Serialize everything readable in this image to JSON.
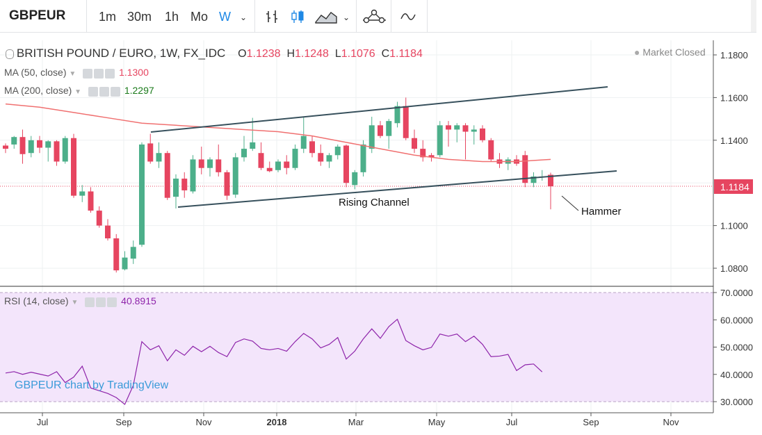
{
  "toolbar": {
    "symbol": "GBPEUR",
    "timeframes": [
      "1m",
      "30m",
      "1h",
      "Mo",
      "W"
    ],
    "active_timeframe": "W",
    "icons": [
      "bars-icon",
      "candles-icon",
      "area-icon",
      "chevron-down-icon",
      "indicators-icon",
      "compare-icon"
    ]
  },
  "header": {
    "title": "BRITISH POUND / EURO, 1W, FX_IDC",
    "o_label": "O",
    "o": "1.1238",
    "h_label": "H",
    "h": "1.1248",
    "l_label": "L",
    "l": "1.1076",
    "c_label": "C",
    "c": "1.1184",
    "status": "Market Closed"
  },
  "indicators": {
    "ma50_label": "MA (50, close)",
    "ma50_value": "1.1300",
    "ma200_label": "MA (200, close)",
    "ma200_value": "1.2297",
    "rsi_label": "RSI (14, close)",
    "rsi_value": "40.8915"
  },
  "colors": {
    "up": "#4caf8a",
    "down": "#e64560",
    "ma50": "#f07070",
    "trend": "#37505c",
    "rsi": "#8e24aa",
    "rsi_band": "#f3e5fb"
  },
  "price_axis": {
    "ticks": [
      "1.1800",
      "1.1600",
      "1.1400",
      "1.1000",
      "1.0800"
    ],
    "last_price": "1.1184"
  },
  "rsi_axis": {
    "ticks": [
      "70.0000",
      "60.0000",
      "50.0000",
      "40.0000",
      "30.0000"
    ]
  },
  "time_axis": {
    "ticks": [
      "Jul",
      "Sep",
      "Nov",
      "2018",
      "Mar",
      "May",
      "Jul",
      "Sep",
      "Nov"
    ]
  },
  "annotations": {
    "channel": "Rising Channel",
    "hammer": "Hammer"
  },
  "watermark": "GBPEUR chart by TradingView",
  "chart_data": {
    "type": "candlestick",
    "ylim": [
      1.074,
      1.188
    ],
    "candles": [
      [
        1.1375,
        1.1385,
        1.134,
        1.136
      ],
      [
        1.138,
        1.142,
        1.136,
        1.1415
      ],
      [
        1.1415,
        1.145,
        1.129,
        1.1335
      ],
      [
        1.134,
        1.142,
        1.132,
        1.14
      ],
      [
        1.14,
        1.142,
        1.134,
        1.1365
      ],
      [
        1.1365,
        1.14,
        1.13,
        1.1395
      ],
      [
        1.1395,
        1.14,
        1.128,
        1.13
      ],
      [
        1.13,
        1.142,
        1.129,
        1.141
      ],
      [
        1.141,
        1.143,
        1.113,
        1.114
      ],
      [
        1.114,
        1.119,
        1.111,
        1.116
      ],
      [
        1.116,
        1.118,
        1.106,
        1.107
      ],
      [
        1.107,
        1.109,
        1.099,
        1.1
      ],
      [
        1.1,
        1.103,
        1.093,
        1.094
      ],
      [
        1.094,
        1.096,
        1.078,
        1.079
      ],
      [
        1.0795,
        1.088,
        1.079,
        1.085
      ],
      [
        1.0845,
        1.093,
        1.082,
        1.09
      ],
      [
        1.091,
        1.139,
        1.09,
        1.138
      ],
      [
        1.1385,
        1.143,
        1.129,
        1.13
      ],
      [
        1.13,
        1.139,
        1.127,
        1.134
      ],
      [
        1.134,
        1.135,
        1.112,
        1.113
      ],
      [
        1.1135,
        1.124,
        1.108,
        1.122
      ],
      [
        1.122,
        1.125,
        1.113,
        1.1165
      ],
      [
        1.116,
        1.133,
        1.115,
        1.131
      ],
      [
        1.131,
        1.137,
        1.124,
        1.127
      ],
      [
        1.127,
        1.132,
        1.123,
        1.131
      ],
      [
        1.131,
        1.138,
        1.123,
        1.125
      ],
      [
        1.125,
        1.126,
        1.112,
        1.114
      ],
      [
        1.1145,
        1.134,
        1.113,
        1.132
      ],
      [
        1.132,
        1.142,
        1.13,
        1.136
      ],
      [
        1.136,
        1.1505,
        1.135,
        1.139
      ],
      [
        1.134,
        1.139,
        1.126,
        1.127
      ],
      [
        1.127,
        1.13,
        1.125,
        1.1255
      ],
      [
        1.126,
        1.131,
        1.125,
        1.13
      ],
      [
        1.13,
        1.133,
        1.124,
        1.127
      ],
      [
        1.127,
        1.138,
        1.126,
        1.136
      ],
      [
        1.136,
        1.151,
        1.134,
        1.142
      ],
      [
        1.1395,
        1.142,
        1.132,
        1.134
      ],
      [
        1.134,
        1.138,
        1.128,
        1.13
      ],
      [
        1.13,
        1.134,
        1.127,
        1.133
      ],
      [
        1.133,
        1.138,
        1.131,
        1.137
      ],
      [
        1.1375,
        1.138,
        1.118,
        1.12
      ],
      [
        1.119,
        1.126,
        1.117,
        1.125
      ],
      [
        1.125,
        1.14,
        1.123,
        1.138
      ],
      [
        1.136,
        1.151,
        1.134,
        1.147
      ],
      [
        1.147,
        1.149,
        1.141,
        1.142
      ],
      [
        1.142,
        1.15,
        1.136,
        1.149
      ],
      [
        1.148,
        1.158,
        1.146,
        1.156
      ],
      [
        1.156,
        1.16,
        1.14,
        1.141
      ],
      [
        1.141,
        1.145,
        1.134,
        1.136
      ],
      [
        1.136,
        1.14,
        1.13,
        1.132
      ],
      [
        1.133,
        1.134,
        1.13,
        1.132
      ],
      [
        1.133,
        1.149,
        1.132,
        1.147
      ],
      [
        1.147,
        1.149,
        1.137,
        1.145
      ],
      [
        1.145,
        1.148,
        1.139,
        1.147
      ],
      [
        1.147,
        1.148,
        1.131,
        1.144
      ],
      [
        1.144,
        1.147,
        1.138,
        1.145
      ],
      [
        1.1455,
        1.147,
        1.139,
        1.14
      ],
      [
        1.14,
        1.141,
        1.13,
        1.131
      ],
      [
        1.131,
        1.134,
        1.127,
        1.129
      ],
      [
        1.129,
        1.132,
        1.126,
        1.131
      ],
      [
        1.131,
        1.133,
        1.128,
        1.129
      ],
      [
        1.133,
        1.135,
        1.118,
        1.12
      ],
      [
        1.12,
        1.125,
        1.118,
        1.123
      ],
      [
        1.123,
        1.126,
        1.121,
        1.123
      ],
      [
        1.1238,
        1.1248,
        1.1076,
        1.1184
      ]
    ],
    "ma50": [
      [
        1.157,
        0
      ],
      [
        1.1555,
        4
      ],
      [
        1.153,
        8
      ],
      [
        1.1505,
        12
      ],
      [
        1.148,
        16
      ],
      [
        1.147,
        20
      ],
      [
        1.146,
        24
      ],
      [
        1.145,
        28
      ],
      [
        1.144,
        32
      ],
      [
        1.142,
        36
      ],
      [
        1.139,
        40
      ],
      [
        1.136,
        44
      ],
      [
        1.133,
        48
      ],
      [
        1.131,
        52
      ],
      [
        1.13,
        56
      ],
      [
        1.13,
        60
      ],
      [
        1.131,
        64
      ]
    ],
    "rsi": [
      [
        0,
        40.5
      ],
      [
        1,
        41
      ],
      [
        2,
        40
      ],
      [
        3,
        40.8
      ],
      [
        4,
        40.1
      ],
      [
        5,
        39.4
      ],
      [
        6,
        41
      ],
      [
        7,
        37
      ],
      [
        8,
        39
      ],
      [
        9,
        43
      ],
      [
        10,
        35
      ],
      [
        11,
        34
      ],
      [
        12,
        33
      ],
      [
        13,
        31.5
      ],
      [
        14,
        29
      ],
      [
        15,
        36
      ],
      [
        16,
        52
      ],
      [
        17,
        49
      ],
      [
        18,
        50.5
      ],
      [
        19,
        45
      ],
      [
        20,
        49
      ],
      [
        21,
        47
      ],
      [
        22,
        50.3
      ],
      [
        23,
        48.3
      ],
      [
        24,
        50.3
      ],
      [
        25,
        48
      ],
      [
        26,
        46.5
      ],
      [
        27,
        51.7
      ],
      [
        28,
        53
      ],
      [
        29,
        52.2
      ],
      [
        30,
        49.5
      ],
      [
        31,
        49
      ],
      [
        32,
        49.5
      ],
      [
        33,
        48.5
      ],
      [
        34,
        52
      ],
      [
        35,
        55
      ],
      [
        36,
        53
      ],
      [
        37,
        49.7
      ],
      [
        38,
        51
      ],
      [
        39,
        53.5
      ],
      [
        40,
        45.6
      ],
      [
        41,
        48.5
      ],
      [
        42,
        53
      ],
      [
        43,
        56.7
      ],
      [
        44,
        53.2
      ],
      [
        45,
        57.5
      ],
      [
        46,
        60.2
      ],
      [
        47,
        52.4
      ],
      [
        48,
        50.5
      ],
      [
        49,
        49
      ],
      [
        50,
        49.9
      ],
      [
        51,
        54.8
      ],
      [
        52,
        54
      ],
      [
        53,
        54.8
      ],
      [
        54,
        52
      ],
      [
        55,
        54
      ],
      [
        56,
        51
      ],
      [
        57,
        46.5
      ],
      [
        58,
        46.7
      ],
      [
        59,
        47.3
      ],
      [
        60,
        41.4
      ],
      [
        61,
        43.5
      ],
      [
        62,
        43.8
      ],
      [
        63,
        40.9
      ]
    ]
  }
}
